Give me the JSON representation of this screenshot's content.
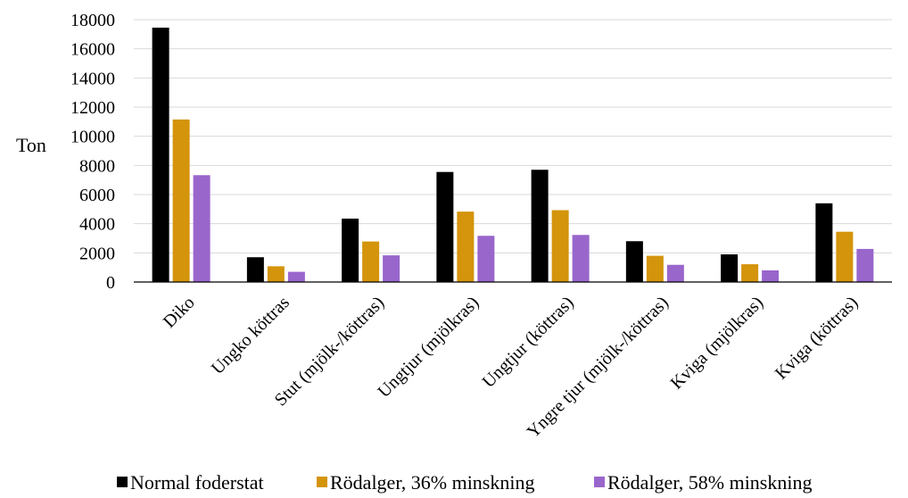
{
  "chart_data": {
    "type": "bar",
    "title": "",
    "xlabel": "",
    "ylabel": "Ton",
    "ylim": [
      0,
      18000
    ],
    "yticks": [
      0,
      2000,
      4000,
      6000,
      8000,
      10000,
      12000,
      14000,
      16000,
      18000
    ],
    "grid": true,
    "legend_position": "bottom",
    "categories": [
      "Diko",
      "Ungko köttras",
      "Stut (mjölk-/köttras)",
      "Ungtjur (mjölkras)",
      "Ungtjur (köttras)",
      "Yngre tjur (mjölk-/köttras)",
      "Kviga (mjölkras)",
      "Kviga (köttras)"
    ],
    "series": [
      {
        "name": "Normal foderstat",
        "color": "#000000",
        "values": [
          17450,
          1700,
          4350,
          7550,
          7700,
          2800,
          1900,
          5400
        ]
      },
      {
        "name": "Rödalger, 36% minskning",
        "color": "#d4940c",
        "values": [
          11150,
          1080,
          2780,
          4830,
          4930,
          1800,
          1220,
          3450
        ]
      },
      {
        "name": "Rödalger, 58% minskning",
        "color": "#9966cc",
        "values": [
          7330,
          700,
          1830,
          3170,
          3230,
          1180,
          800,
          2270
        ]
      }
    ]
  }
}
